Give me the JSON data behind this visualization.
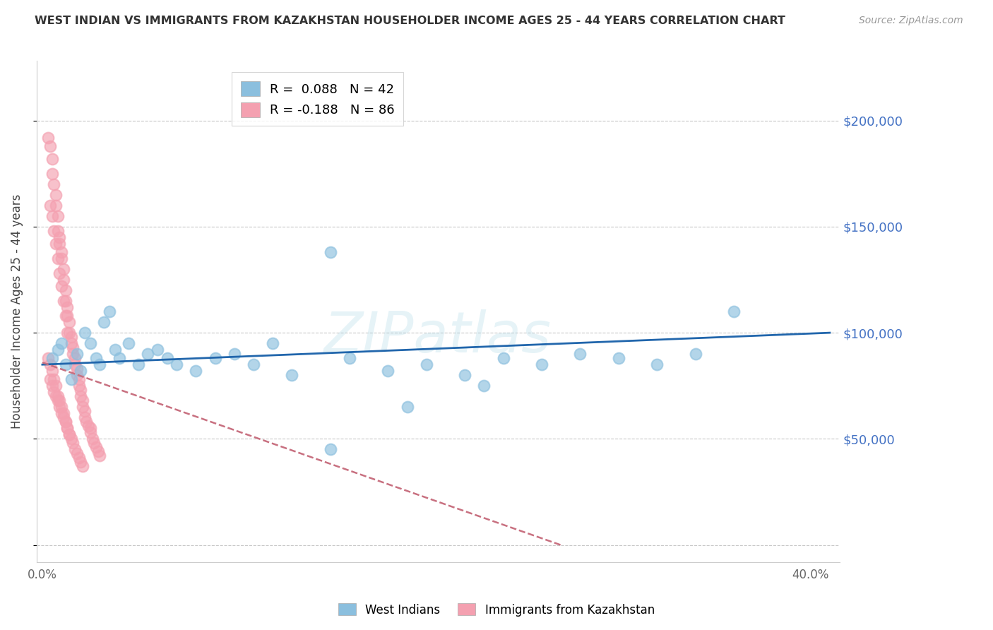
{
  "title": "WEST INDIAN VS IMMIGRANTS FROM KAZAKHSTAN HOUSEHOLDER INCOME AGES 25 - 44 YEARS CORRELATION CHART",
  "source": "Source: ZipAtlas.com",
  "ylabel": "Householder Income Ages 25 - 44 years",
  "watermark": "ZIPatlas",
  "legend1_label": "R =  0.088   N = 42",
  "legend2_label": "R = -0.188   N = 86",
  "legend1_color": "#8bbfde",
  "legend2_color": "#f4a0b0",
  "trend1_color": "#2166ac",
  "trend2_color": "#c87080",
  "xlim": [
    -0.003,
    0.415
  ],
  "ylim": [
    -8000,
    228000
  ],
  "background": "#ffffff",
  "grid_color": "#c8c8c8",
  "west_indian_x": [
    0.005,
    0.008,
    0.01,
    0.012,
    0.015,
    0.018,
    0.02,
    0.022,
    0.025,
    0.028,
    0.03,
    0.032,
    0.035,
    0.038,
    0.04,
    0.045,
    0.05,
    0.055,
    0.06,
    0.065,
    0.07,
    0.08,
    0.09,
    0.1,
    0.11,
    0.12,
    0.13,
    0.15,
    0.16,
    0.18,
    0.2,
    0.22,
    0.24,
    0.26,
    0.28,
    0.3,
    0.32,
    0.34,
    0.36,
    0.15,
    0.19,
    0.23
  ],
  "west_indian_y": [
    88000,
    92000,
    95000,
    85000,
    78000,
    90000,
    82000,
    100000,
    95000,
    88000,
    85000,
    105000,
    110000,
    92000,
    88000,
    95000,
    85000,
    90000,
    92000,
    88000,
    85000,
    82000,
    88000,
    90000,
    85000,
    95000,
    80000,
    138000,
    88000,
    82000,
    85000,
    80000,
    88000,
    85000,
    90000,
    88000,
    85000,
    90000,
    110000,
    45000,
    65000,
    75000
  ],
  "kazakhstan_x": [
    0.003,
    0.004,
    0.005,
    0.005,
    0.006,
    0.007,
    0.007,
    0.008,
    0.008,
    0.009,
    0.009,
    0.01,
    0.01,
    0.011,
    0.011,
    0.012,
    0.012,
    0.013,
    0.013,
    0.014,
    0.014,
    0.015,
    0.015,
    0.016,
    0.016,
    0.017,
    0.017,
    0.018,
    0.018,
    0.019,
    0.019,
    0.02,
    0.02,
    0.021,
    0.021,
    0.022,
    0.022,
    0.023,
    0.024,
    0.025,
    0.025,
    0.026,
    0.027,
    0.028,
    0.029,
    0.03,
    0.004,
    0.005,
    0.006,
    0.007,
    0.008,
    0.009,
    0.01,
    0.011,
    0.012,
    0.013,
    0.003,
    0.004,
    0.005,
    0.006,
    0.007,
    0.008,
    0.009,
    0.01,
    0.011,
    0.012,
    0.013,
    0.014,
    0.004,
    0.005,
    0.006,
    0.007,
    0.008,
    0.009,
    0.01,
    0.011,
    0.012,
    0.013,
    0.014,
    0.015,
    0.016,
    0.017,
    0.018,
    0.019,
    0.02,
    0.021
  ],
  "kazakhstan_y": [
    192000,
    188000,
    182000,
    175000,
    170000,
    165000,
    160000,
    155000,
    148000,
    145000,
    142000,
    138000,
    135000,
    130000,
    125000,
    120000,
    115000,
    112000,
    108000,
    105000,
    100000,
    98000,
    95000,
    93000,
    90000,
    88000,
    85000,
    83000,
    80000,
    78000,
    75000,
    73000,
    70000,
    68000,
    65000,
    63000,
    60000,
    58000,
    56000,
    55000,
    53000,
    50000,
    48000,
    46000,
    44000,
    42000,
    160000,
    155000,
    148000,
    142000,
    135000,
    128000,
    122000,
    115000,
    108000,
    100000,
    88000,
    85000,
    82000,
    78000,
    75000,
    70000,
    68000,
    65000,
    62000,
    58000,
    55000,
    52000,
    78000,
    75000,
    72000,
    70000,
    68000,
    65000,
    62000,
    60000,
    58000,
    55000,
    52000,
    50000,
    48000,
    45000,
    43000,
    41000,
    39000,
    37000
  ]
}
